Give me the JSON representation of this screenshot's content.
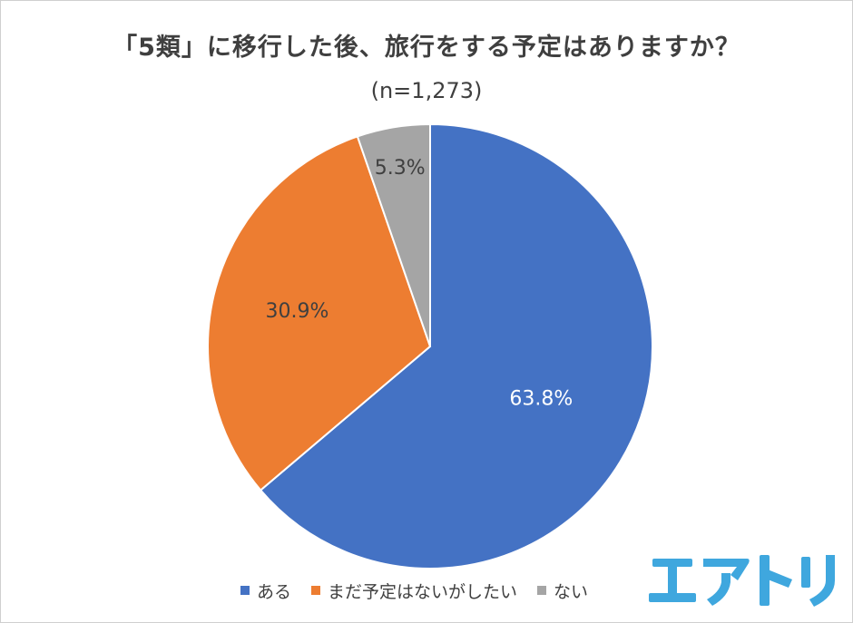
{
  "chart_data": {
    "type": "pie",
    "title": "「5類」に移行した後、旅行をする予定はありますか？",
    "subtitle": "(n=1,273)",
    "categories": [
      "ある",
      "まだ予定はないがしたい",
      "ない"
    ],
    "values": [
      63.8,
      30.9,
      5.3
    ],
    "data_labels": [
      "63.8%",
      "30.9%",
      "5.3%"
    ],
    "colors": [
      "#4472C4",
      "#ED7D31",
      "#A5A5A5"
    ],
    "start_angle_deg": 0,
    "direction": "clockwise",
    "legend_position": "bottom"
  },
  "logo": {
    "text": "エアトリ",
    "color": "#3FA7DE"
  }
}
